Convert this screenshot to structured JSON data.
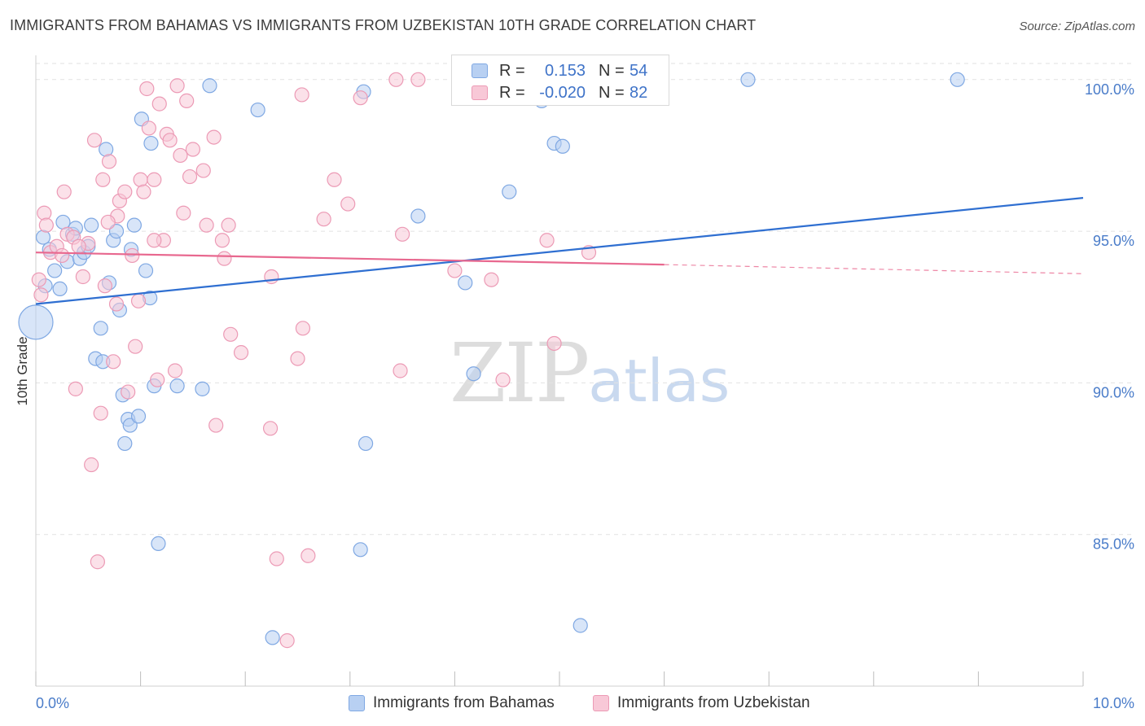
{
  "header": {
    "title": "IMMIGRANTS FROM BAHAMAS VS IMMIGRANTS FROM UZBEKISTAN 10TH GRADE CORRELATION CHART",
    "source": "Source: ZipAtlas.com"
  },
  "watermark": {
    "zip": "ZIP",
    "atlas": "atlas"
  },
  "legend": {
    "rows": [
      {
        "r_label": "R =",
        "r_value": "0.153",
        "n_label": "N =",
        "n_value": "54",
        "color": "#a9c6ee"
      },
      {
        "r_label": "R =",
        "r_value": "-0.020",
        "n_label": "N =",
        "n_value": "82",
        "color": "#f4b3c8"
      }
    ]
  },
  "bottom_legend": {
    "items": [
      {
        "label": "Immigrants from Bahamas",
        "color": "#a9c6ee"
      },
      {
        "label": "Immigrants from Uzbekistan",
        "color": "#f4b3c8"
      }
    ]
  },
  "chart_data": {
    "type": "scatter",
    "title": "IMMIGRANTS FROM BAHAMAS VS IMMIGRANTS FROM UZBEKISTAN 10TH GRADE CORRELATION CHART",
    "xlabel": "",
    "ylabel": "10th Grade",
    "xlim": [
      0,
      10
    ],
    "ylim": [
      80.0,
      100.8
    ],
    "x_tick_labels": [
      "0.0%",
      "10.0%"
    ],
    "y_ticks": [
      85,
      90,
      95,
      100
    ],
    "y_tick_labels": [
      "85.0%",
      "90.0%",
      "95.0%",
      "100.0%"
    ],
    "grid": true,
    "legend_position": "top-center",
    "series": [
      {
        "name": "Immigrants from Bahamas",
        "color": "#7fa8e3",
        "fill": "#b8d0f2",
        "line_color": "#2f6fd1",
        "trend": {
          "x": [
            0.0,
            10.0
          ],
          "y": [
            92.6,
            96.1
          ]
        },
        "points": [
          {
            "x": 0.0,
            "y": 92.0,
            "big": true
          },
          {
            "x": 0.07,
            "y": 94.8
          },
          {
            "x": 0.09,
            "y": 93.2
          },
          {
            "x": 0.13,
            "y": 94.4
          },
          {
            "x": 0.18,
            "y": 93.7
          },
          {
            "x": 0.23,
            "y": 93.1
          },
          {
            "x": 0.26,
            "y": 95.3
          },
          {
            "x": 0.3,
            "y": 94.0
          },
          {
            "x": 0.35,
            "y": 94.9
          },
          {
            "x": 0.38,
            "y": 95.1
          },
          {
            "x": 0.42,
            "y": 94.1
          },
          {
            "x": 0.46,
            "y": 94.3
          },
          {
            "x": 0.5,
            "y": 94.5
          },
          {
            "x": 0.53,
            "y": 95.2
          },
          {
            "x": 0.57,
            "y": 90.8
          },
          {
            "x": 0.62,
            "y": 91.8
          },
          {
            "x": 0.64,
            "y": 90.7
          },
          {
            "x": 0.67,
            "y": 97.7
          },
          {
            "x": 0.7,
            "y": 93.3
          },
          {
            "x": 0.74,
            "y": 94.7
          },
          {
            "x": 0.77,
            "y": 95.0
          },
          {
            "x": 0.8,
            "y": 92.4
          },
          {
            "x": 0.83,
            "y": 89.6
          },
          {
            "x": 0.85,
            "y": 88.0
          },
          {
            "x": 0.88,
            "y": 88.8
          },
          {
            "x": 0.9,
            "y": 88.6
          },
          {
            "x": 0.91,
            "y": 94.4
          },
          {
            "x": 0.94,
            "y": 95.2
          },
          {
            "x": 0.98,
            "y": 88.9
          },
          {
            "x": 1.01,
            "y": 98.7
          },
          {
            "x": 1.05,
            "y": 93.7
          },
          {
            "x": 1.09,
            "y": 92.8
          },
          {
            "x": 1.1,
            "y": 97.9
          },
          {
            "x": 1.13,
            "y": 89.9
          },
          {
            "x": 1.17,
            "y": 84.7
          },
          {
            "x": 1.59,
            "y": 89.8
          },
          {
            "x": 1.66,
            "y": 99.8
          },
          {
            "x": 2.12,
            "y": 99.0
          },
          {
            "x": 2.26,
            "y": 81.6
          },
          {
            "x": 3.15,
            "y": 88.0
          },
          {
            "x": 3.13,
            "y": 99.6
          },
          {
            "x": 3.1,
            "y": 84.5
          },
          {
            "x": 3.65,
            "y": 95.5
          },
          {
            "x": 4.1,
            "y": 93.3
          },
          {
            "x": 4.18,
            "y": 90.3
          },
          {
            "x": 4.32,
            "y": 99.9
          },
          {
            "x": 4.52,
            "y": 96.3
          },
          {
            "x": 4.83,
            "y": 99.3
          },
          {
            "x": 4.95,
            "y": 97.9
          },
          {
            "x": 5.03,
            "y": 97.8
          },
          {
            "x": 5.2,
            "y": 82.0
          },
          {
            "x": 6.8,
            "y": 100.0
          },
          {
            "x": 8.8,
            "y": 100.0
          },
          {
            "x": 1.35,
            "y": 89.9
          }
        ]
      },
      {
        "name": "Immigrants from Uzbekistan",
        "color": "#ec9ab5",
        "fill": "#f8c8d7",
        "line_color": "#e8688f",
        "trend": {
          "x": [
            0.0,
            6.0
          ],
          "y": [
            94.3,
            93.9
          ]
        },
        "trend_dashed": {
          "x": [
            6.0,
            10.0
          ],
          "y": [
            93.9,
            93.6
          ]
        },
        "points": [
          {
            "x": 0.03,
            "y": 93.4
          },
          {
            "x": 0.05,
            "y": 92.9
          },
          {
            "x": 0.08,
            "y": 95.6
          },
          {
            "x": 0.1,
            "y": 95.2
          },
          {
            "x": 0.14,
            "y": 94.3
          },
          {
            "x": 0.2,
            "y": 94.5
          },
          {
            "x": 0.25,
            "y": 94.2
          },
          {
            "x": 0.27,
            "y": 96.3
          },
          {
            "x": 0.3,
            "y": 94.9
          },
          {
            "x": 0.36,
            "y": 94.8
          },
          {
            "x": 0.38,
            "y": 89.8
          },
          {
            "x": 0.45,
            "y": 93.5
          },
          {
            "x": 0.5,
            "y": 94.6
          },
          {
            "x": 0.53,
            "y": 87.3
          },
          {
            "x": 0.56,
            "y": 98.0
          },
          {
            "x": 0.59,
            "y": 84.1
          },
          {
            "x": 0.62,
            "y": 89.0
          },
          {
            "x": 0.64,
            "y": 96.7
          },
          {
            "x": 0.66,
            "y": 93.2
          },
          {
            "x": 0.7,
            "y": 97.3
          },
          {
            "x": 0.74,
            "y": 90.7
          },
          {
            "x": 0.78,
            "y": 95.5
          },
          {
            "x": 0.77,
            "y": 92.6
          },
          {
            "x": 0.8,
            "y": 96.0
          },
          {
            "x": 0.85,
            "y": 96.3
          },
          {
            "x": 0.88,
            "y": 89.7
          },
          {
            "x": 0.92,
            "y": 94.2
          },
          {
            "x": 0.95,
            "y": 91.2
          },
          {
            "x": 0.98,
            "y": 92.7
          },
          {
            "x": 1.0,
            "y": 96.7
          },
          {
            "x": 1.03,
            "y": 96.3
          },
          {
            "x": 1.06,
            "y": 99.7
          },
          {
            "x": 1.08,
            "y": 98.4
          },
          {
            "x": 1.13,
            "y": 96.7
          },
          {
            "x": 1.16,
            "y": 90.1
          },
          {
            "x": 1.18,
            "y": 99.2
          },
          {
            "x": 1.22,
            "y": 94.7
          },
          {
            "x": 1.25,
            "y": 98.2
          },
          {
            "x": 1.28,
            "y": 98.0
          },
          {
            "x": 1.33,
            "y": 90.4
          },
          {
            "x": 1.35,
            "y": 99.8
          },
          {
            "x": 1.38,
            "y": 97.5
          },
          {
            "x": 1.41,
            "y": 95.6
          },
          {
            "x": 1.44,
            "y": 99.3
          },
          {
            "x": 1.47,
            "y": 96.8
          },
          {
            "x": 1.5,
            "y": 97.7
          },
          {
            "x": 1.6,
            "y": 97.0
          },
          {
            "x": 1.63,
            "y": 95.2
          },
          {
            "x": 1.7,
            "y": 98.1
          },
          {
            "x": 1.72,
            "y": 88.6
          },
          {
            "x": 1.78,
            "y": 94.7
          },
          {
            "x": 1.8,
            "y": 94.1
          },
          {
            "x": 1.84,
            "y": 95.2
          },
          {
            "x": 1.86,
            "y": 91.6
          },
          {
            "x": 1.96,
            "y": 91.0
          },
          {
            "x": 2.24,
            "y": 88.5
          },
          {
            "x": 2.25,
            "y": 93.5
          },
          {
            "x": 2.3,
            "y": 84.2
          },
          {
            "x": 2.5,
            "y": 90.8
          },
          {
            "x": 2.54,
            "y": 99.5
          },
          {
            "x": 2.55,
            "y": 91.8
          },
          {
            "x": 2.4,
            "y": 81.5
          },
          {
            "x": 2.6,
            "y": 84.3
          },
          {
            "x": 2.75,
            "y": 95.4
          },
          {
            "x": 2.85,
            "y": 96.7
          },
          {
            "x": 2.98,
            "y": 95.9
          },
          {
            "x": 3.1,
            "y": 99.4
          },
          {
            "x": 3.44,
            "y": 100.0
          },
          {
            "x": 3.48,
            "y": 90.4
          },
          {
            "x": 3.5,
            "y": 94.9
          },
          {
            "x": 3.65,
            "y": 100.0
          },
          {
            "x": 4.0,
            "y": 93.7
          },
          {
            "x": 4.25,
            "y": 100.0
          },
          {
            "x": 4.35,
            "y": 93.4
          },
          {
            "x": 4.46,
            "y": 90.1
          },
          {
            "x": 4.5,
            "y": 100.0
          },
          {
            "x": 4.88,
            "y": 94.7
          },
          {
            "x": 4.95,
            "y": 91.3
          },
          {
            "x": 5.28,
            "y": 94.3
          },
          {
            "x": 1.13,
            "y": 94.7
          },
          {
            "x": 0.41,
            "y": 94.5
          },
          {
            "x": 0.69,
            "y": 95.3
          }
        ]
      }
    ]
  }
}
